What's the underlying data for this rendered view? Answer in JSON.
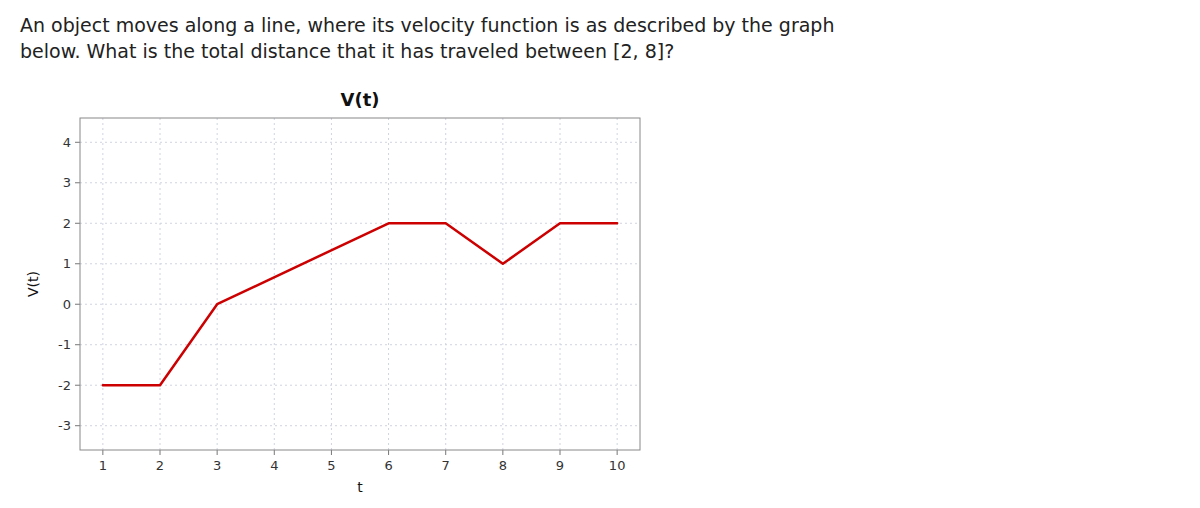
{
  "chart_data": {
    "type": "line",
    "title": "V(t)",
    "annotations": [
      "An object moves along a line, where its velocity function is as described by the graph",
      "below. What is the total distance that it has traveled between [2, 8]?"
    ],
    "x_label": "t",
    "y_label": "V(t)",
    "x": [
      1,
      2,
      3,
      6,
      7,
      8,
      9,
      10
    ],
    "values": [
      -2,
      -2,
      0,
      2,
      2,
      1,
      2,
      2
    ],
    "color": "#cc0000",
    "xlim": [
      0.6,
      10.4
    ],
    "xticks": [
      1,
      2,
      3,
      4,
      5,
      6,
      7,
      8,
      9,
      10
    ],
    "ylim": [
      -3.6,
      4.6
    ],
    "yticks": [
      -3,
      -2,
      -1,
      0,
      1,
      2,
      3,
      4
    ],
    "grid": true
  }
}
